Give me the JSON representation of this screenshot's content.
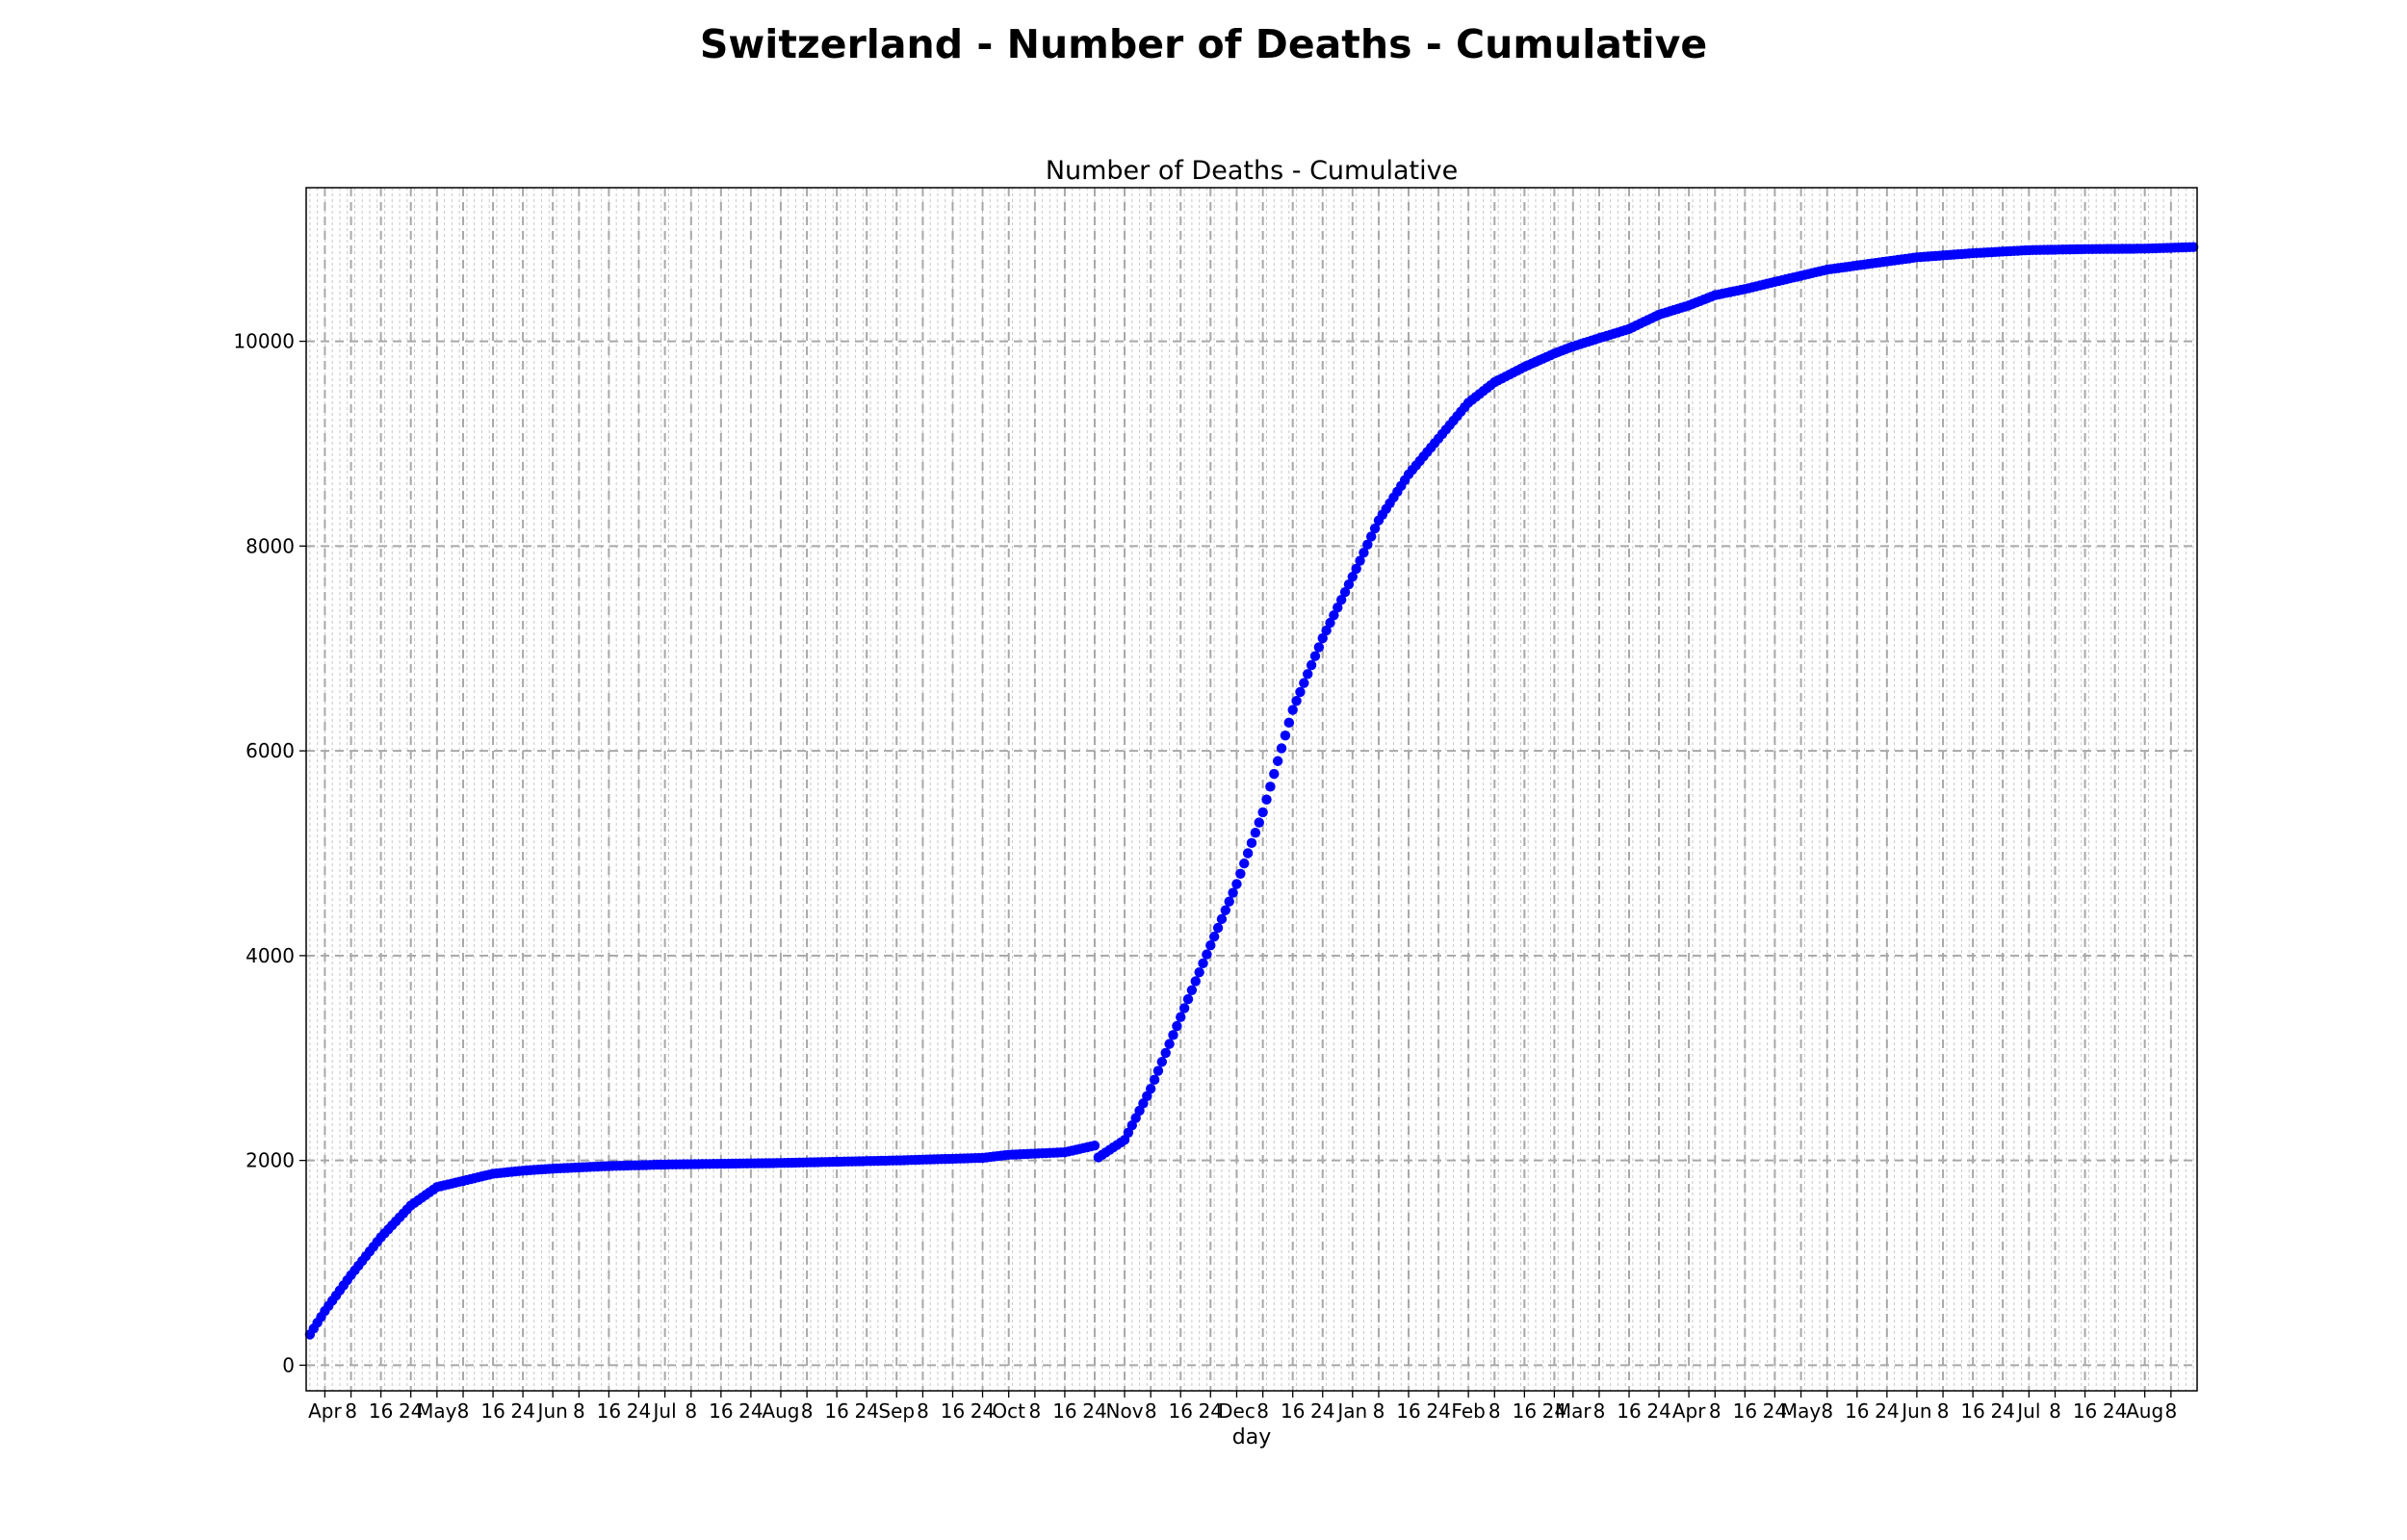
{
  "figure": {
    "suptitle": "Switzerland - Number of Deaths - Cumulative"
  },
  "chart_data": {
    "type": "scatter",
    "title": "Number of Deaths - Cumulative",
    "xlabel": "day",
    "ylabel": "",
    "x_start": "2020-03-28",
    "x_end": "2021-08-14",
    "xlim": [
      "2020-03-27",
      "2021-08-15"
    ],
    "ylim": [
      -250,
      11500
    ],
    "y_ticks": [
      0,
      2000,
      4000,
      6000,
      8000,
      10000
    ],
    "x_ticks": [
      {
        "label": "Apr",
        "date": "2020-04-01"
      },
      {
        "label": "8",
        "date": "2020-04-08"
      },
      {
        "label": "16",
        "date": "2020-04-16"
      },
      {
        "label": "24",
        "date": "2020-04-24"
      },
      {
        "label": "May",
        "date": "2020-05-01"
      },
      {
        "label": "8",
        "date": "2020-05-08"
      },
      {
        "label": "16",
        "date": "2020-05-16"
      },
      {
        "label": "24",
        "date": "2020-05-24"
      },
      {
        "label": "Jun",
        "date": "2020-06-01"
      },
      {
        "label": "8",
        "date": "2020-06-08"
      },
      {
        "label": "16",
        "date": "2020-06-16"
      },
      {
        "label": "24",
        "date": "2020-06-24"
      },
      {
        "label": "Jul",
        "date": "2020-07-01"
      },
      {
        "label": "8",
        "date": "2020-07-08"
      },
      {
        "label": "16",
        "date": "2020-07-16"
      },
      {
        "label": "24",
        "date": "2020-07-24"
      },
      {
        "label": "Aug",
        "date": "2020-08-01"
      },
      {
        "label": "8",
        "date": "2020-08-08"
      },
      {
        "label": "16",
        "date": "2020-08-16"
      },
      {
        "label": "24",
        "date": "2020-08-24"
      },
      {
        "label": "Sep",
        "date": "2020-09-01"
      },
      {
        "label": "8",
        "date": "2020-09-08"
      },
      {
        "label": "16",
        "date": "2020-09-16"
      },
      {
        "label": "24",
        "date": "2020-09-24"
      },
      {
        "label": "Oct",
        "date": "2020-10-01"
      },
      {
        "label": "8",
        "date": "2020-10-08"
      },
      {
        "label": "16",
        "date": "2020-10-16"
      },
      {
        "label": "24",
        "date": "2020-10-24"
      },
      {
        "label": "Nov",
        "date": "2020-11-01"
      },
      {
        "label": "8",
        "date": "2020-11-08"
      },
      {
        "label": "16",
        "date": "2020-11-16"
      },
      {
        "label": "24",
        "date": "2020-11-24"
      },
      {
        "label": "Dec",
        "date": "2020-12-01"
      },
      {
        "label": "8",
        "date": "2020-12-08"
      },
      {
        "label": "16",
        "date": "2020-12-16"
      },
      {
        "label": "24",
        "date": "2020-12-24"
      },
      {
        "label": "Jan",
        "date": "2021-01-01"
      },
      {
        "label": "8",
        "date": "2021-01-08"
      },
      {
        "label": "16",
        "date": "2021-01-16"
      },
      {
        "label": "24",
        "date": "2021-01-24"
      },
      {
        "label": "Feb",
        "date": "2021-02-01"
      },
      {
        "label": "8",
        "date": "2021-02-08"
      },
      {
        "label": "16",
        "date": "2021-02-16"
      },
      {
        "label": "24",
        "date": "2021-02-24"
      },
      {
        "label": "Mar",
        "date": "2021-03-01"
      },
      {
        "label": "8",
        "date": "2021-03-08"
      },
      {
        "label": "16",
        "date": "2021-03-16"
      },
      {
        "label": "24",
        "date": "2021-03-24"
      },
      {
        "label": "Apr",
        "date": "2021-04-01"
      },
      {
        "label": "8",
        "date": "2021-04-08"
      },
      {
        "label": "16",
        "date": "2021-04-16"
      },
      {
        "label": "24",
        "date": "2021-04-24"
      },
      {
        "label": "May",
        "date": "2021-05-01"
      },
      {
        "label": "8",
        "date": "2021-05-08"
      },
      {
        "label": "16",
        "date": "2021-05-16"
      },
      {
        "label": "24",
        "date": "2021-05-24"
      },
      {
        "label": "Jun",
        "date": "2021-06-01"
      },
      {
        "label": "8",
        "date": "2021-06-08"
      },
      {
        "label": "16",
        "date": "2021-06-16"
      },
      {
        "label": "24",
        "date": "2021-06-24"
      },
      {
        "label": "Jul",
        "date": "2021-07-01"
      },
      {
        "label": "8",
        "date": "2021-07-08"
      },
      {
        "label": "16",
        "date": "2021-07-16"
      },
      {
        "label": "24",
        "date": "2021-07-24"
      },
      {
        "label": "Aug",
        "date": "2021-08-01"
      },
      {
        "label": "8",
        "date": "2021-08-08"
      }
    ],
    "grid": {
      "major": true,
      "minor": true,
      "style": "dashed"
    },
    "marker_color": "#0000ff",
    "series": [
      {
        "anchors": [
          {
            "date": "2020-03-28",
            "value": 300
          },
          {
            "date": "2020-04-01",
            "value": 530
          },
          {
            "date": "2020-04-08",
            "value": 880
          },
          {
            "date": "2020-04-16",
            "value": 1250
          },
          {
            "date": "2020-04-24",
            "value": 1560
          },
          {
            "date": "2020-05-01",
            "value": 1740
          },
          {
            "date": "2020-05-08",
            "value": 1800
          },
          {
            "date": "2020-05-16",
            "value": 1870
          },
          {
            "date": "2020-05-24",
            "value": 1900
          },
          {
            "date": "2020-06-01",
            "value": 1920
          },
          {
            "date": "2020-06-16",
            "value": 1945
          },
          {
            "date": "2020-07-01",
            "value": 1960
          },
          {
            "date": "2020-08-01",
            "value": 1975
          },
          {
            "date": "2020-09-01",
            "value": 2000
          },
          {
            "date": "2020-09-24",
            "value": 2025
          },
          {
            "date": "2020-10-01",
            "value": 2055
          },
          {
            "date": "2020-10-16",
            "value": 2080
          },
          {
            "date": "2020-10-24",
            "value": 2145
          },
          {
            "date": "2020-10-25",
            "value": 2030
          },
          {
            "date": "2020-11-01",
            "value": 2200
          },
          {
            "date": "2020-11-08",
            "value": 2700
          },
          {
            "date": "2020-11-16",
            "value": 3400
          },
          {
            "date": "2020-11-24",
            "value": 4100
          },
          {
            "date": "2020-12-01",
            "value": 4700
          },
          {
            "date": "2020-12-08",
            "value": 5400
          },
          {
            "date": "2020-12-16",
            "value": 6400
          },
          {
            "date": "2020-12-24",
            "value": 7100
          },
          {
            "date": "2021-01-01",
            "value": 7700
          },
          {
            "date": "2021-01-08",
            "value": 8250
          },
          {
            "date": "2021-01-16",
            "value": 8700
          },
          {
            "date": "2021-01-24",
            "value": 9050
          },
          {
            "date": "2021-02-01",
            "value": 9400
          },
          {
            "date": "2021-02-08",
            "value": 9600
          },
          {
            "date": "2021-02-16",
            "value": 9750
          },
          {
            "date": "2021-02-24",
            "value": 9880
          },
          {
            "date": "2021-03-01",
            "value": 9950
          },
          {
            "date": "2021-03-08",
            "value": 10030
          },
          {
            "date": "2021-03-16",
            "value": 10120
          },
          {
            "date": "2021-03-24",
            "value": 10260
          },
          {
            "date": "2021-04-01",
            "value": 10350
          },
          {
            "date": "2021-04-08",
            "value": 10450
          },
          {
            "date": "2021-04-16",
            "value": 10510
          },
          {
            "date": "2021-04-24",
            "value": 10580
          },
          {
            "date": "2021-05-01",
            "value": 10640
          },
          {
            "date": "2021-05-08",
            "value": 10700
          },
          {
            "date": "2021-05-16",
            "value": 10740
          },
          {
            "date": "2021-05-24",
            "value": 10780
          },
          {
            "date": "2021-06-01",
            "value": 10820
          },
          {
            "date": "2021-06-16",
            "value": 10860
          },
          {
            "date": "2021-07-01",
            "value": 10890
          },
          {
            "date": "2021-07-16",
            "value": 10900
          },
          {
            "date": "2021-08-01",
            "value": 10905
          },
          {
            "date": "2021-08-14",
            "value": 10920
          }
        ]
      }
    ]
  }
}
